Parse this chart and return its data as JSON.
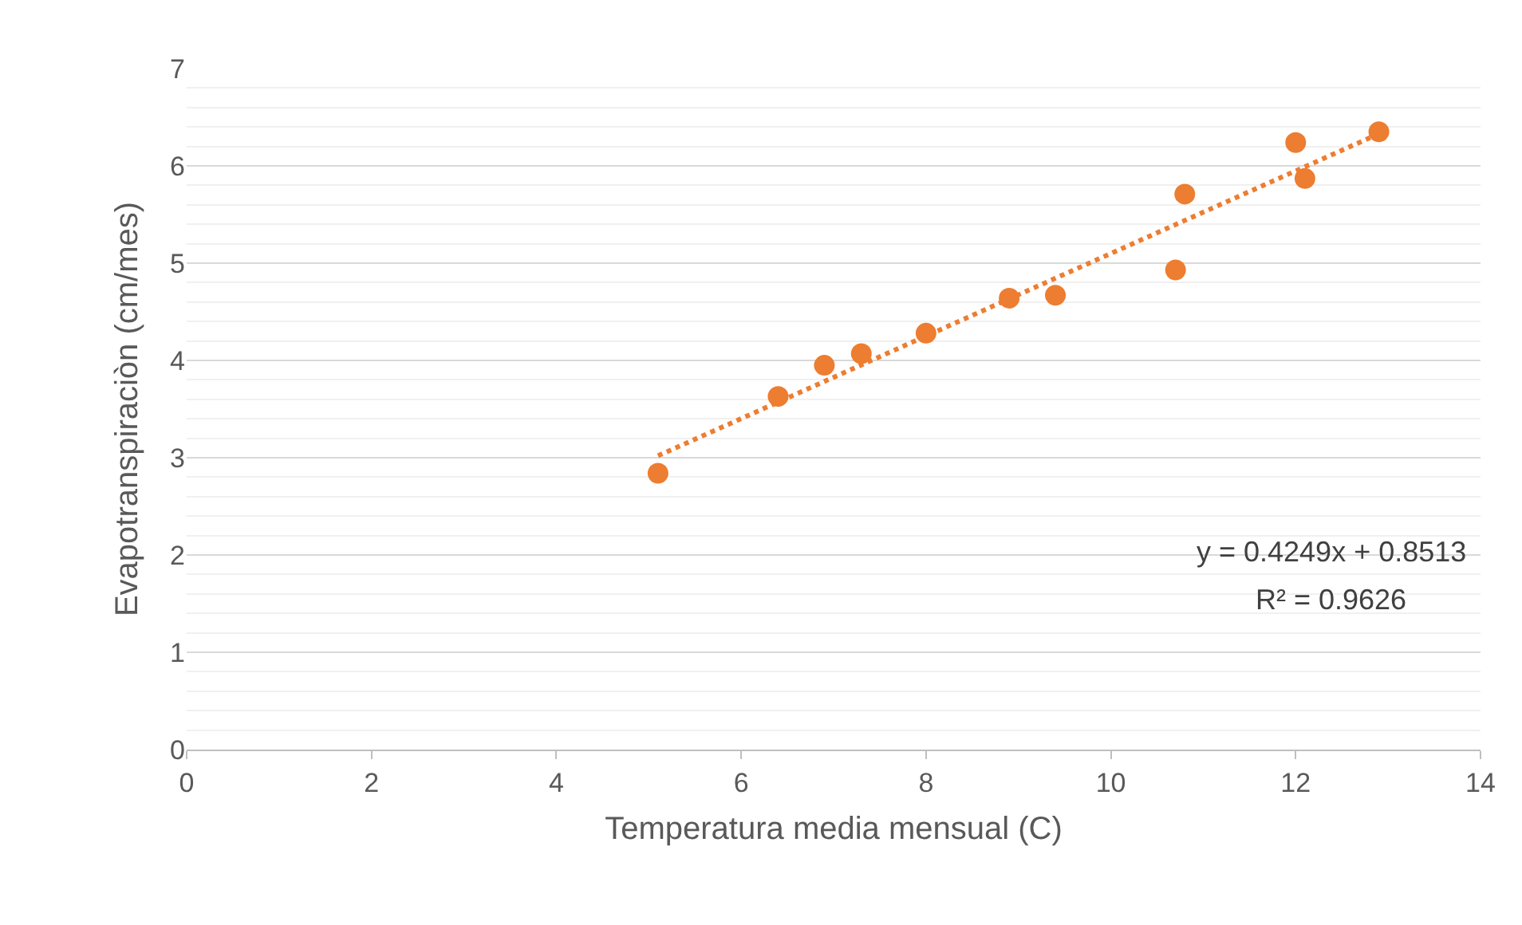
{
  "chart_data": {
    "type": "scatter",
    "xlabel": "Temperatura media mensual (C)",
    "ylabel": "Evapotranspiraciòn (cm/mes)",
    "xlim": [
      0,
      14
    ],
    "xticks": [
      0,
      2,
      4,
      6,
      8,
      10,
      12,
      14
    ],
    "ylim": [
      0,
      7
    ],
    "yticks": [
      0,
      1,
      2,
      3,
      4,
      5,
      6,
      7
    ],
    "grid": "y",
    "marker": "circle",
    "series": [
      {
        "color": "#ed7d31",
        "x": [
          5.1,
          6.4,
          6.9,
          7.3,
          8.0,
          8.9,
          9.4,
          10.7,
          10.8,
          12.0,
          12.1,
          12.9
        ],
        "values": [
          2.84,
          3.63,
          3.95,
          4.07,
          4.28,
          4.64,
          4.67,
          4.93,
          5.71,
          6.24,
          5.87,
          6.35
        ]
      },
      {
        "type": "line",
        "line_style": "dotted",
        "marker": "none",
        "color": "#ed7d31",
        "x": [
          5.1,
          12.9
        ],
        "values": [
          3.02,
          6.33
        ]
      }
    ],
    "annotations": [
      "y = 0.4249x + 0.8513",
      "R² = 0.9626"
    ]
  }
}
